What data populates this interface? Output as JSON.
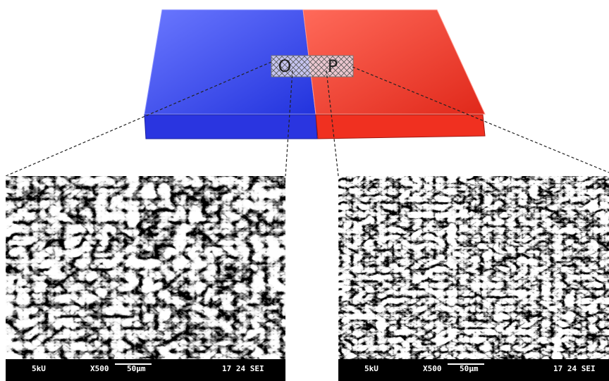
{
  "labels": {
    "left": "O",
    "right": "P"
  },
  "panels": [
    {
      "voltage": "5kU",
      "magnification": "X500",
      "scale": "50μm",
      "info": "17 24 SEI"
    },
    {
      "voltage": "5kU",
      "magnification": "X500",
      "scale": "50μm",
      "info": "17 24 SEI"
    }
  ]
}
